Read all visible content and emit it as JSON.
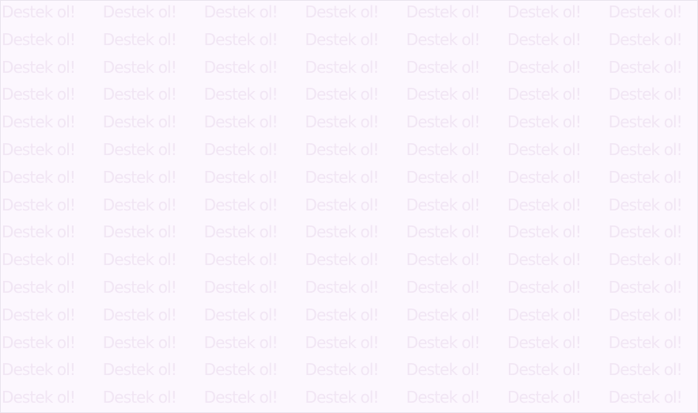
{
  "banner": {
    "text": "Destek ol!",
    "columns": 7,
    "rows": 15,
    "background_color": "#fcf7fe",
    "text_color": "#f1e6f4",
    "border_color": "#e9e4ee"
  }
}
